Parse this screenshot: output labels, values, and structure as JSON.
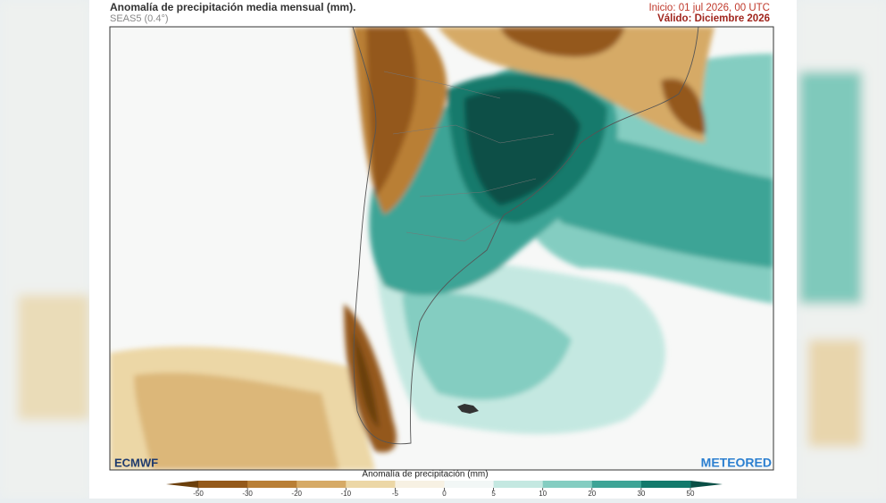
{
  "header": {
    "title": "Anomalía de precipitación media mensual (mm).",
    "subtitle": "SEAS5 (0.4°)",
    "init": "Inicio: 01 jul 2026, 00 UTC",
    "valid": "Válido: Diciembre 2026"
  },
  "logos": {
    "left": "ECMWF",
    "right": "METEORED"
  },
  "colorbar": {
    "label": "Anomalía de precipitación (mm)",
    "ticks": [
      -50,
      -30,
      -20,
      -10,
      -5,
      0,
      5,
      10,
      20,
      30,
      50
    ],
    "colors": [
      "#6b3f0c",
      "#94591a",
      "#b97f36",
      "#d6aa66",
      "#ecd7a6",
      "#f7f1e3",
      "#f2f7f6",
      "#c4e8e1",
      "#84cdc1",
      "#3ea496",
      "#137a6c",
      "#0a4f46"
    ]
  }
}
